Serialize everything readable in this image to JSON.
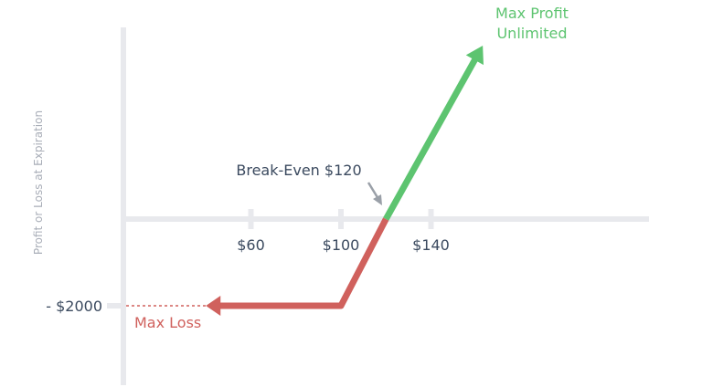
{
  "chart_data": {
    "type": "line",
    "title": "",
    "ylabel": "Profit or Loss at Expiration",
    "xlabel": "",
    "x_ticks": [
      {
        "value": 60,
        "label": "$60"
      },
      {
        "value": 100,
        "label": "$100"
      },
      {
        "value": 140,
        "label": "$140"
      }
    ],
    "y_ticks": [
      {
        "value": -2000,
        "label": "- $2000"
      }
    ],
    "strike": 100,
    "break_even": 120,
    "max_loss": -2000,
    "loss_segment": [
      [
        40,
        -2000
      ],
      [
        100,
        -2000
      ],
      [
        120,
        0
      ]
    ],
    "profit_segment": [
      [
        120,
        0
      ],
      [
        163,
        4000
      ]
    ],
    "annotations": {
      "break_even": "Break-Even $120",
      "max_loss": "Max Loss",
      "max_profit_line1": "Max Profit",
      "max_profit_line2": "Unlimited"
    },
    "colors": {
      "profit": "#5dc470",
      "loss": "#d0615d",
      "axis": "#e8e9ed",
      "text": "#3b4a5f",
      "ylabel": "#a9aeb8",
      "pointer": "#9aa0a8"
    }
  }
}
